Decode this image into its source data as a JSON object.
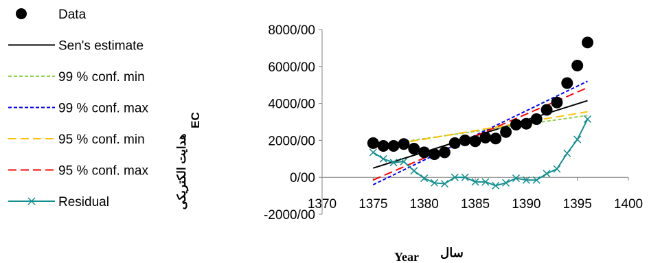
{
  "chart_data": {
    "type": "line",
    "legend_position": "left",
    "xlabel_en": "Year",
    "xlabel_fa": "سال",
    "ylabel_fa": "هدایت الکتریکی",
    "ylabel_en": "EC",
    "xlim": [
      1370,
      1400
    ],
    "ylim": [
      -2000,
      8000
    ],
    "x_ticks": [
      {
        "v": 1370,
        "label": "1370"
      },
      {
        "v": 1375,
        "label": "1375"
      },
      {
        "v": 1380,
        "label": "1380"
      },
      {
        "v": 1385,
        "label": "1385"
      },
      {
        "v": 1390,
        "label": "1390"
      },
      {
        "v": 1395,
        "label": "1395"
      },
      {
        "v": 1400,
        "label": "1400"
      }
    ],
    "y_ticks": [
      {
        "v": -2000,
        "label": "-2000/00"
      },
      {
        "v": 0,
        "label": "0/00"
      },
      {
        "v": 2000,
        "label": "2000/00"
      },
      {
        "v": 4000,
        "label": "4000/00"
      },
      {
        "v": 6000,
        "label": "6000/00"
      },
      {
        "v": 8000,
        "label": "8000/00"
      }
    ],
    "series": [
      {
        "name": "Data",
        "style": "markers",
        "color": "#000000",
        "x": [
          1375,
          1376,
          1377,
          1378,
          1379,
          1380,
          1381,
          1382,
          1383,
          1384,
          1385,
          1386,
          1387,
          1388,
          1389,
          1390,
          1391,
          1392,
          1393,
          1394,
          1395,
          1396
        ],
        "y": [
          1850,
          1700,
          1700,
          1800,
          1550,
          1350,
          1250,
          1350,
          1850,
          2000,
          1950,
          2150,
          2100,
          2450,
          2850,
          2900,
          3150,
          3650,
          4050,
          5100,
          6050,
          7300
        ]
      },
      {
        "name": "Sen's estimate",
        "style": "solid",
        "color": "#000000",
        "x": [
          1375,
          1396
        ],
        "y": [
          500,
          4150
        ]
      },
      {
        "name": "99 % conf. min",
        "style": "dash-short",
        "color": "#92d050",
        "x": [
          1375,
          1396
        ],
        "y": [
          1700,
          3350
        ]
      },
      {
        "name": "99 % conf. max",
        "style": "dash-short",
        "color": "#0000ff",
        "x": [
          1375,
          1396
        ],
        "y": [
          -400,
          5200
        ]
      },
      {
        "name": "95 % conf. min",
        "style": "dash-long",
        "color": "#ffc000",
        "x": [
          1375,
          1396
        ],
        "y": [
          1600,
          3550
        ]
      },
      {
        "name": "95 % conf. max",
        "style": "dash-long",
        "color": "#ff0000",
        "x": [
          1375,
          1396
        ],
        "y": [
          -150,
          4850
        ]
      },
      {
        "name": "Residual",
        "style": "line-x",
        "color": "#138f8f",
        "x": [
          1375,
          1376,
          1377,
          1378,
          1379,
          1380,
          1381,
          1382,
          1383,
          1384,
          1385,
          1386,
          1387,
          1388,
          1389,
          1390,
          1391,
          1392,
          1393,
          1394,
          1395,
          1396
        ],
        "y": [
          1350,
          1000,
          800,
          850,
          350,
          -50,
          -300,
          -350,
          0,
          0,
          -250,
          -250,
          -450,
          -300,
          -50,
          -150,
          -150,
          200,
          450,
          1300,
          2050,
          3150
        ]
      }
    ]
  }
}
